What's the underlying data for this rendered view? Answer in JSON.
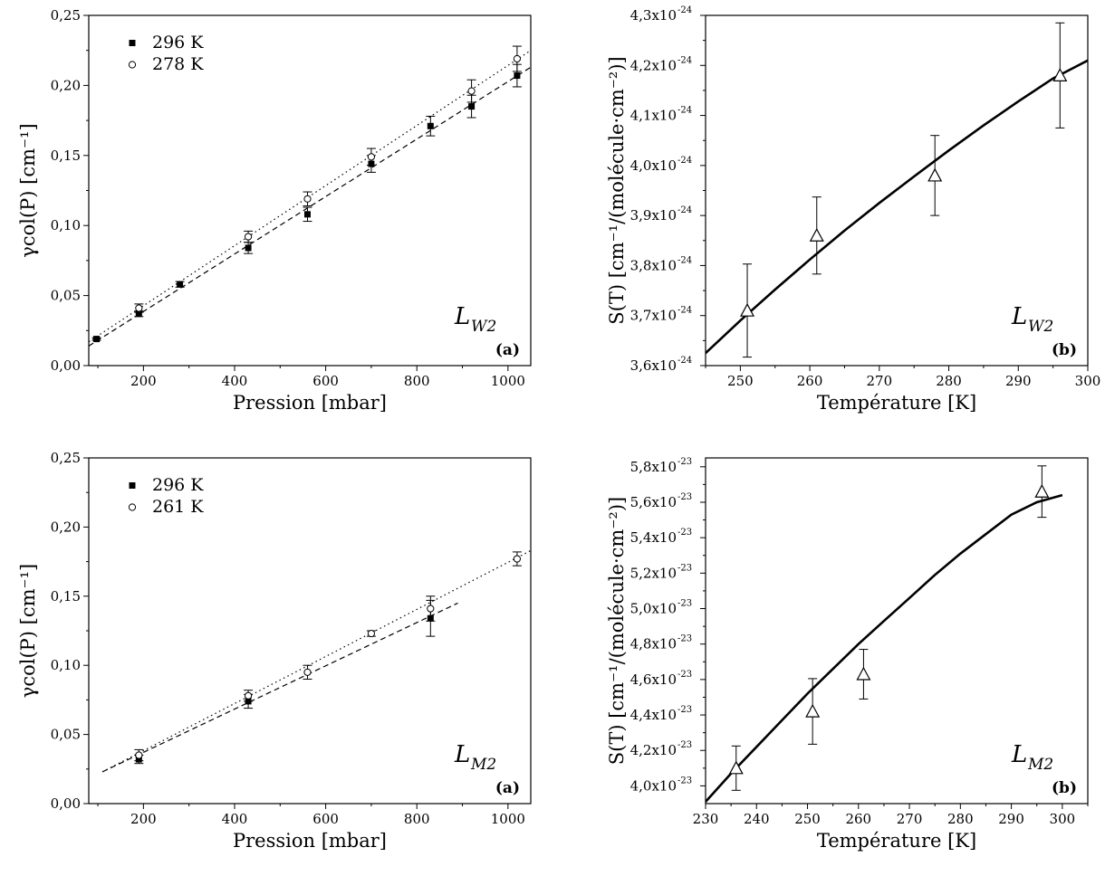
{
  "chart_data": [
    {
      "type": "scatter",
      "xlabel": "Pression [mbar]",
      "ylabel": "γcol(P) [cm⁻¹]",
      "xlim": [
        80,
        1050
      ],
      "ylim": [
        0,
        0.25
      ],
      "xticks": [
        200,
        400,
        600,
        800,
        1000
      ],
      "xtick_labels": [
        "200",
        "400",
        "600",
        "800",
        "1000"
      ],
      "yticks": [
        0,
        0.05,
        0.1,
        0.15,
        0.2,
        0.25
      ],
      "ytick_labels": [
        "0,00",
        "0,05",
        "0,10",
        "0,15",
        "0,20",
        "0,25"
      ],
      "curve_label": "L",
      "curve_subscript": "W2",
      "panel_tag": "(a)",
      "legend_position": "top-left",
      "series": [
        {
          "name": "296 K",
          "marker": "filled-square",
          "line_style": "dashed",
          "points": [
            {
              "x": 97,
              "y": 0.019,
              "err": 0.001
            },
            {
              "x": 190,
              "y": 0.037,
              "err": 0.002
            },
            {
              "x": 280,
              "y": 0.058,
              "err": 0.002
            },
            {
              "x": 430,
              "y": 0.084,
              "err": 0.004
            },
            {
              "x": 560,
              "y": 0.108,
              "err": 0.005
            },
            {
              "x": 700,
              "y": 0.144,
              "err": 0.006
            },
            {
              "x": 830,
              "y": 0.171,
              "err": 0.007
            },
            {
              "x": 920,
              "y": 0.185,
              "err": 0.008
            },
            {
              "x": 1020,
              "y": 0.207,
              "err": 0.008
            }
          ],
          "fit_line": [
            [
              80,
              0.014
            ],
            [
              1050,
              0.213
            ]
          ]
        },
        {
          "name": "278 K",
          "marker": "open-circle",
          "line_style": "dotted",
          "points": [
            {
              "x": 190,
              "y": 0.041,
              "err": 0.003
            },
            {
              "x": 430,
              "y": 0.092,
              "err": 0.004
            },
            {
              "x": 560,
              "y": 0.119,
              "err": 0.005
            },
            {
              "x": 700,
              "y": 0.149,
              "err": 0.006
            },
            {
              "x": 920,
              "y": 0.196,
              "err": 0.008
            },
            {
              "x": 1020,
              "y": 0.219,
              "err": 0.009
            }
          ],
          "fit_line": [
            [
              80,
              0.017
            ],
            [
              1050,
              0.225
            ]
          ]
        }
      ]
    },
    {
      "type": "scatter",
      "xlabel": "Température [K]",
      "ylabel": "S(T) [cm⁻¹/(molécule·cm⁻²)]",
      "xlim": [
        245,
        300
      ],
      "ylim": [
        3.6,
        4.3
      ],
      "y_multiplier": "1e-24",
      "xticks": [
        250,
        260,
        270,
        280,
        290,
        300
      ],
      "xtick_labels": [
        "250",
        "260",
        "270",
        "280",
        "290",
        "300"
      ],
      "yticks": [
        3.6,
        3.7,
        3.8,
        3.9,
        4.0,
        4.1,
        4.2,
        4.3
      ],
      "ytick_mantissas": [
        "3,6x10",
        "3,7x10",
        "3,8x10",
        "3,9x10",
        "4,0x10",
        "4,1x10",
        "4,2x10",
        "4,3x10"
      ],
      "ytick_exponent": "-24",
      "curve_label": "L",
      "curve_subscript": "W2",
      "panel_tag": "(b)",
      "series": [
        {
          "marker": "open-triangle",
          "points": [
            {
              "x": 251,
              "y": 3.71,
              "err": 0.093
            },
            {
              "x": 261,
              "y": 3.86,
              "err": 0.077
            },
            {
              "x": 278,
              "y": 3.98,
              "err": 0.08
            },
            {
              "x": 296,
              "y": 4.18,
              "err": 0.105
            }
          ],
          "curve": [
            [
              245,
              3.625
            ],
            [
              250,
              3.69
            ],
            [
              255,
              3.752
            ],
            [
              260,
              3.812
            ],
            [
              265,
              3.87
            ],
            [
              270,
              3.925
            ],
            [
              275,
              3.978
            ],
            [
              280,
              4.03
            ],
            [
              285,
              4.08
            ],
            [
              290,
              4.128
            ],
            [
              295,
              4.174
            ],
            [
              300,
              4.21
            ]
          ]
        }
      ]
    },
    {
      "type": "scatter",
      "xlabel": "Pression [mbar]",
      "ylabel": "γcol(P) [cm⁻¹]",
      "xlim": [
        80,
        1050
      ],
      "ylim": [
        0,
        0.25
      ],
      "xticks": [
        200,
        400,
        600,
        800,
        1000
      ],
      "xtick_labels": [
        "200",
        "400",
        "600",
        "800",
        "1000"
      ],
      "yticks": [
        0,
        0.05,
        0.1,
        0.15,
        0.2,
        0.25
      ],
      "ytick_labels": [
        "0,00",
        "0,05",
        "0,10",
        "0,15",
        "0,20",
        "0,25"
      ],
      "curve_label": "L",
      "curve_subscript": "M2",
      "panel_tag": "(a)",
      "legend_position": "top-left",
      "series": [
        {
          "name": "296 K",
          "marker": "filled-square",
          "line_style": "dashed",
          "points": [
            {
              "x": 190,
              "y": 0.032,
              "err": 0.003
            },
            {
              "x": 430,
              "y": 0.074,
              "err": 0.005
            },
            {
              "x": 830,
              "y": 0.134,
              "err": 0.013
            }
          ],
          "fit_line": [
            [
              110,
              0.023
            ],
            [
              890,
              0.145
            ]
          ]
        },
        {
          "name": "261 K",
          "marker": "open-circle",
          "line_style": "dotted",
          "points": [
            {
              "x": 190,
              "y": 0.035,
              "err": 0.004
            },
            {
              "x": 430,
              "y": 0.078,
              "err": 0.004
            },
            {
              "x": 560,
              "y": 0.095,
              "err": 0.005
            },
            {
              "x": 700,
              "y": 0.123,
              "err": 0.002
            },
            {
              "x": 830,
              "y": 0.141,
              "err": 0.009
            },
            {
              "x": 1020,
              "y": 0.177,
              "err": 0.005
            }
          ],
          "fit_line": [
            [
              110,
              0.023
            ],
            [
              1050,
              0.183
            ]
          ]
        }
      ]
    },
    {
      "type": "scatter",
      "xlabel": "Température [K]",
      "ylabel": "S(T) [cm⁻¹/(molécule·cm⁻²)]",
      "xlim": [
        230,
        305
      ],
      "ylim": [
        3.9,
        5.85
      ],
      "y_multiplier": "1e-23",
      "xticks": [
        230,
        240,
        250,
        260,
        270,
        280,
        290,
        300
      ],
      "xtick_labels": [
        "230",
        "240",
        "250",
        "260",
        "270",
        "280",
        "290",
        "300"
      ],
      "yticks": [
        4.0,
        4.2,
        4.4,
        4.6,
        4.8,
        5.0,
        5.2,
        5.4,
        5.6,
        5.8
      ],
      "ytick_mantissas": [
        "4,0x10",
        "4,2x10",
        "4,4x10",
        "4,6x10",
        "4,8x10",
        "5,0x10",
        "5,2x10",
        "5,4x10",
        "5,6x10",
        "5,8x10"
      ],
      "ytick_exponent": "-23",
      "curve_label": "L",
      "curve_subscript": "M2",
      "panel_tag": "(b)",
      "series": [
        {
          "marker": "open-triangle",
          "points": [
            {
              "x": 236,
              "y": 4.1,
              "err": 0.125
            },
            {
              "x": 251,
              "y": 4.42,
              "err": 0.185
            },
            {
              "x": 261,
              "y": 4.63,
              "err": 0.14
            },
            {
              "x": 296,
              "y": 5.66,
              "err": 0.145
            }
          ],
          "curve": [
            [
              230,
              3.91
            ],
            [
              235,
              4.07
            ],
            [
              240,
              4.22
            ],
            [
              245,
              4.37
            ],
            [
              250,
              4.52
            ],
            [
              255,
              4.66
            ],
            [
              260,
              4.8
            ],
            [
              265,
              4.93
            ],
            [
              270,
              5.06
            ],
            [
              275,
              5.19
            ],
            [
              280,
              5.31
            ],
            [
              285,
              5.42
            ],
            [
              290,
              5.53
            ],
            [
              295,
              5.6
            ],
            [
              300,
              5.64
            ]
          ]
        }
      ]
    }
  ]
}
